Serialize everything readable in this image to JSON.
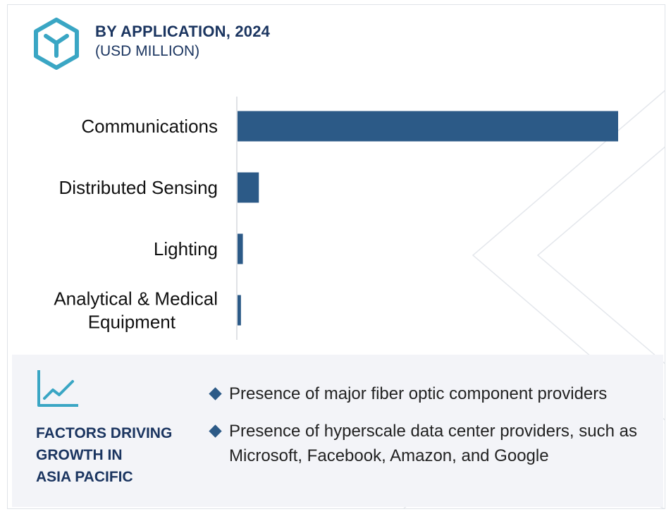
{
  "header": {
    "title": "BY APPLICATION, 2024",
    "subtitle": "(USD MILLION)"
  },
  "colors": {
    "bar": "#2c5a87",
    "heading": "#1b3560",
    "accent_icon": "#3aa6c4",
    "panel_bg": "#f3f4f8"
  },
  "chart_data": {
    "type": "bar",
    "orientation": "horizontal",
    "categories": [
      [
        "Communications"
      ],
      [
        "Distributed Sensing"
      ],
      [
        "Lighting"
      ],
      [
        "Analytical & Medical",
        "Equipment"
      ]
    ],
    "values": [
      100,
      5.6,
      1.4,
      0.9
    ],
    "xlim": [
      0,
      100
    ],
    "grid": false,
    "legend": "none",
    "title": "BY APPLICATION, 2024",
    "subtitle": "(USD MILLION)"
  },
  "factors": {
    "heading": "FACTORS DRIVING\nGROWTH IN\nASIA PACIFIC",
    "items": [
      "Presence of major fiber optic component providers",
      "Presence of hyperscale data center providers, such as Microsoft, Facebook, Amazon, and Google"
    ]
  }
}
